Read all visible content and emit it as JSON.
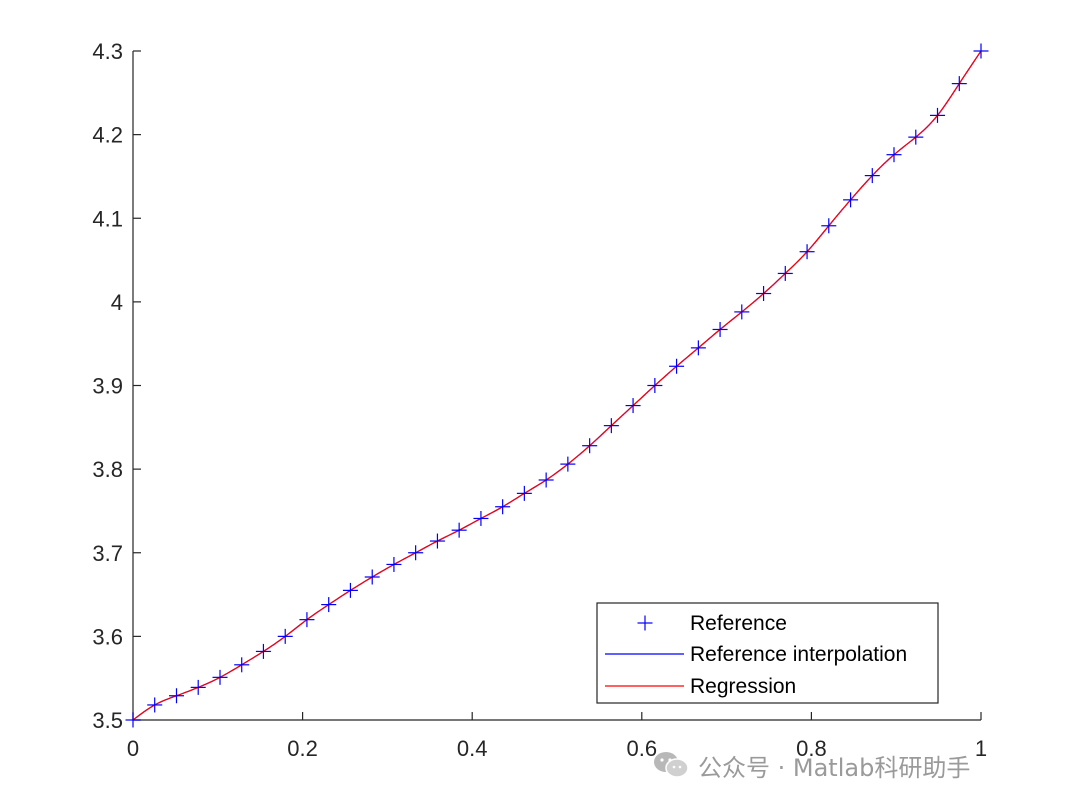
{
  "chart_data": {
    "type": "line",
    "title": "",
    "xlabel": "",
    "ylabel": "",
    "xlim": [
      0,
      1
    ],
    "ylim": [
      3.5,
      4.3
    ],
    "x_ticks": [
      "0",
      "0.2",
      "0.4",
      "0.6",
      "0.8",
      "1"
    ],
    "y_ticks": [
      "3.5",
      "3.6",
      "3.7",
      "3.8",
      "3.9",
      "4",
      "4.1",
      "4.2",
      "4.3"
    ],
    "grid": false,
    "legend_position": "bottom-right",
    "series": [
      {
        "name": "Reference",
        "style": "markers",
        "marker": "+",
        "color": "#0000ff",
        "x": [
          0,
          0.0256,
          0.0513,
          0.0769,
          0.1026,
          0.1282,
          0.1538,
          0.1795,
          0.2051,
          0.2308,
          0.2564,
          0.2821,
          0.3077,
          0.3333,
          0.359,
          0.3846,
          0.4103,
          0.4359,
          0.4615,
          0.4872,
          0.5128,
          0.5385,
          0.5641,
          0.5897,
          0.6154,
          0.641,
          0.6667,
          0.6923,
          0.7179,
          0.7436,
          0.7692,
          0.7949,
          0.8205,
          0.8462,
          0.8718,
          0.8974,
          0.9231,
          0.9487,
          0.9744,
          1.0
        ],
        "y": [
          3.5,
          3.518,
          3.529,
          3.539,
          3.551,
          3.566,
          3.582,
          3.6,
          3.62,
          3.638,
          3.655,
          3.671,
          3.686,
          3.7,
          3.714,
          3.727,
          3.741,
          3.755,
          3.771,
          3.787,
          3.806,
          3.828,
          3.852,
          3.876,
          3.9,
          3.923,
          3.945,
          3.967,
          3.988,
          4.01,
          4.034,
          4.06,
          4.091,
          4.122,
          4.151,
          4.176,
          4.197,
          4.223,
          4.261,
          4.3
        ]
      },
      {
        "name": "Reference interpolation",
        "style": "line",
        "color": "#0000ff"
      },
      {
        "name": "Regression",
        "style": "line",
        "color": "#ff0000"
      }
    ]
  },
  "watermark": {
    "text": "公众号 · Matlab科研助手",
    "icon": "wechat-icon"
  }
}
